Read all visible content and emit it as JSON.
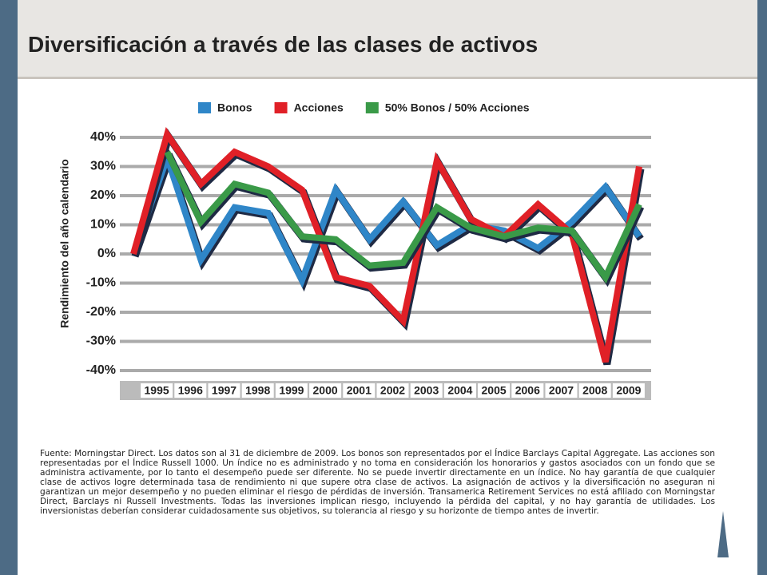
{
  "title": "Diversificación a través de las clases de activos",
  "chart_data": {
    "type": "line",
    "y_label": "Rendimiento del año calendario",
    "categories": [
      null,
      "1995",
      "1996",
      "1997",
      "1998",
      "1999",
      "2000",
      "2001",
      "2002",
      "2003",
      "2004",
      "2005",
      "2006",
      "2007",
      "2008",
      "2009"
    ],
    "series": [
      {
        "name": "Bonos",
        "color": "#2f86c8",
        "values": [
          0,
          33,
          -2,
          16,
          14,
          -9,
          22,
          5,
          18,
          3,
          10,
          8,
          2,
          11,
          23,
          6
        ]
      },
      {
        "name": "Acciones",
        "color": "#e02027",
        "values": [
          0,
          41,
          24,
          35,
          30,
          22,
          -8,
          -11,
          -23,
          32,
          12,
          6,
          17,
          7,
          -37,
          30
        ]
      },
      {
        "name": "50% Bonos / 50% Acciones",
        "color": "#3a9a48",
        "values": [
          null,
          35,
          11,
          24,
          21,
          6,
          5,
          -4,
          -3,
          16,
          9,
          6,
          9,
          8,
          -8,
          17
        ]
      }
    ],
    "ylim": [
      -40,
      40
    ],
    "yticks": [
      {
        "value": 40,
        "label": "40%"
      },
      {
        "value": 30,
        "label": "30%"
      },
      {
        "value": 20,
        "label": "20%"
      },
      {
        "value": 10,
        "label": "10%"
      },
      {
        "value": 0,
        "label": "0%"
      },
      {
        "value": -10,
        "label": "-10%"
      },
      {
        "value": -20,
        "label": "-20%"
      },
      {
        "value": -30,
        "label": "-30%"
      },
      {
        "value": -40,
        "label": "-40%"
      }
    ],
    "grid": true
  },
  "footnote": "Fuente: Morningstar Direct. Los datos son al 31 de diciembre de 2009. Los bonos son representados por el Índice Barclays Capital Aggregate. Las acciones son representadas por el Índice Russell 1000. Un índice no es administrado y no toma en consideración los honorarios y gastos asociados con un fondo que se administra activamente, por lo tanto el desempeño puede ser diferente. No se puede invertir directamente en un índice. No hay garantía de que cualquier clase de activos logre determinada tasa de rendimiento ni que supere otra clase de activos. La asignación de activos y la diversificación no aseguran ni garantizan un mejor desempeño y no pueden eliminar el riesgo de pérdidas de inversión. Transamerica Retirement Services no está afiliado con Morningstar Direct, Barclays ni Russell Investments. Todas las inversiones implican riesgo, incluyendo la pérdida del capital, y no hay garantía de utilidades. Los inversionistas deberían considerar cuidadosamente sus objetivos, su tolerancia al riesgo y su horizonte de tiempo antes de invertir."
}
